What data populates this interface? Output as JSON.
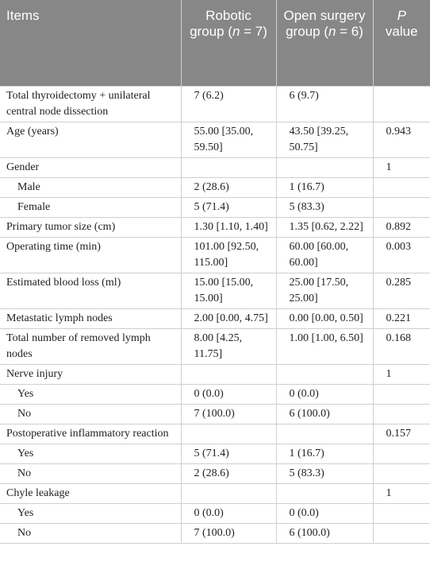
{
  "table": {
    "columns": [
      [
        "Items"
      ],
      [
        "Robotic group (",
        "n",
        " = 7)"
      ],
      [
        "Open surgery group (",
        "n",
        " = 6)"
      ],
      [
        "",
        "P",
        " value"
      ]
    ],
    "rows": [
      [
        "Total thyroidectomy + unilateral central node dissection",
        "7 (6.2)",
        "6 (9.7)",
        ""
      ],
      [
        "Age (years)",
        "55.00 [35.00, 59.50]",
        "43.50 [39.25, 50.75]",
        "0.943"
      ],
      [
        "Gender",
        "",
        "",
        "1"
      ],
      [
        "Male",
        "2 (28.6)",
        "1 (16.7)",
        ""
      ],
      [
        "Female",
        "5 (71.4)",
        "5 (83.3)",
        ""
      ],
      [
        "Primary tumor size (cm)",
        "1.30 [1.10, 1.40]",
        "1.35 [0.62, 2.22]",
        "0.892"
      ],
      [
        "Operating time (min)",
        "101.00 [92.50, 115.00]",
        "60.00 [60.00, 60.00]",
        "0.003"
      ],
      [
        "Estimated blood loss (ml)",
        "15.00 [15.00, 15.00]",
        "25.00 [17.50, 25.00]",
        "0.285"
      ],
      [
        "Metastatic lymph nodes",
        "2.00 [0.00, 4.75]",
        "0.00 [0.00, 0.50]",
        "0.221"
      ],
      [
        "Total number of removed lymph nodes",
        "8.00 [4.25, 11.75]",
        "1.00 [1.00, 6.50]",
        "0.168"
      ],
      [
        "Nerve injury",
        "",
        "",
        "1"
      ],
      [
        "Yes",
        "0 (0.0)",
        "0 (0.0)",
        ""
      ],
      [
        "No",
        "7 (100.0)",
        "6 (100.0)",
        ""
      ],
      [
        "Postoperative inflammatory reaction",
        "",
        "",
        "0.157"
      ],
      [
        "Yes",
        "5 (71.4)",
        "1 (16.7)",
        ""
      ],
      [
        "No",
        "2 (28.6)",
        "5 (83.3)",
        ""
      ],
      [
        "Chyle leakage",
        "",
        "",
        "1"
      ],
      [
        "Yes",
        "0 (0.0)",
        "0 (0.0)",
        ""
      ],
      [
        "No",
        "7 (100.0)",
        "6 (100.0)",
        ""
      ]
    ]
  }
}
